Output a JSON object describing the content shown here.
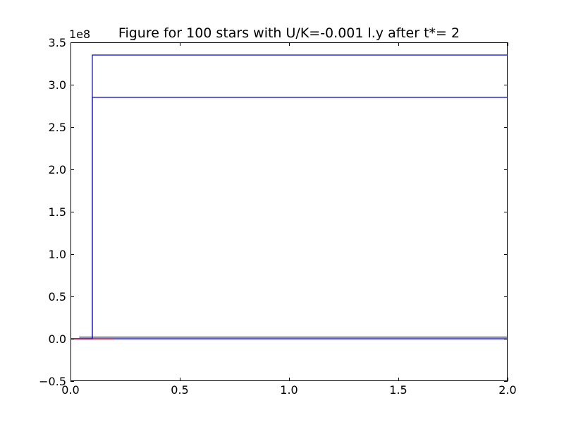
{
  "chart_data": {
    "type": "line",
    "title": "Figure for 100 stars with U/K=-0.001 l.y after t*= 2",
    "xlabel": "",
    "ylabel": "",
    "xlim": [
      0.0,
      2.0
    ],
    "ylim": [
      -0.5,
      3.5
    ],
    "y_offset_text": "1e8",
    "x_ticks": [
      "0.0",
      "0.5",
      "1.0",
      "1.5",
      "2.0"
    ],
    "y_ticks": [
      "−0.5",
      "0.0",
      "0.5",
      "1.0",
      "1.5",
      "2.0",
      "2.5",
      "3.0",
      "3.5"
    ],
    "x_tick_values": [
      0.0,
      0.5,
      1.0,
      1.5,
      2.0
    ],
    "y_tick_values": [
      -0.5,
      0.0,
      0.5,
      1.0,
      1.5,
      2.0,
      2.5,
      3.0,
      3.5
    ],
    "grid": false,
    "legend": "none",
    "series": [
      {
        "color": "#0000cc",
        "x": [
          0.0,
          0.1,
          0.1,
          2.0
        ],
        "y": [
          0.0,
          0.0,
          3.35,
          3.35
        ]
      },
      {
        "color": "#0000cc",
        "x": [
          0.0,
          0.1,
          0.1,
          2.0
        ],
        "y": [
          0.0,
          0.0,
          2.85,
          2.85
        ]
      },
      {
        "color": "#0000cc",
        "x": [
          0.04,
          0.2,
          0.2,
          2.0
        ],
        "y": [
          0.02,
          0.02,
          0.02,
          0.02
        ]
      },
      {
        "color": "#0000cc",
        "x": [
          0.0,
          2.0
        ],
        "y": [
          0.0,
          0.0
        ]
      },
      {
        "color": "#cc0000",
        "x": [
          0.0,
          0.2
        ],
        "y": [
          0.0,
          0.0
        ]
      }
    ]
  }
}
